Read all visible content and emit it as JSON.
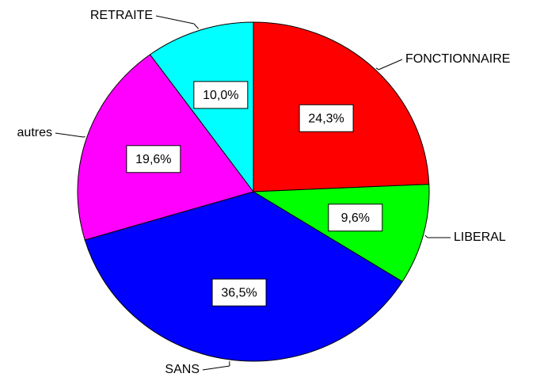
{
  "chart_data": {
    "type": "pie",
    "categories": [
      "FONCTIONNAIRE",
      "LIBERAL",
      "SANS",
      "autres",
      "RETRAITE"
    ],
    "values": [
      24.3,
      9.6,
      36.5,
      19.6,
      10.0
    ],
    "value_labels": [
      "24,3%",
      "9,6%",
      "36,5%",
      "19,6%",
      "10,0%"
    ],
    "colors": [
      "#ff0000",
      "#00ff00",
      "#0000ff",
      "#ff00ff",
      "#00ffff"
    ]
  }
}
